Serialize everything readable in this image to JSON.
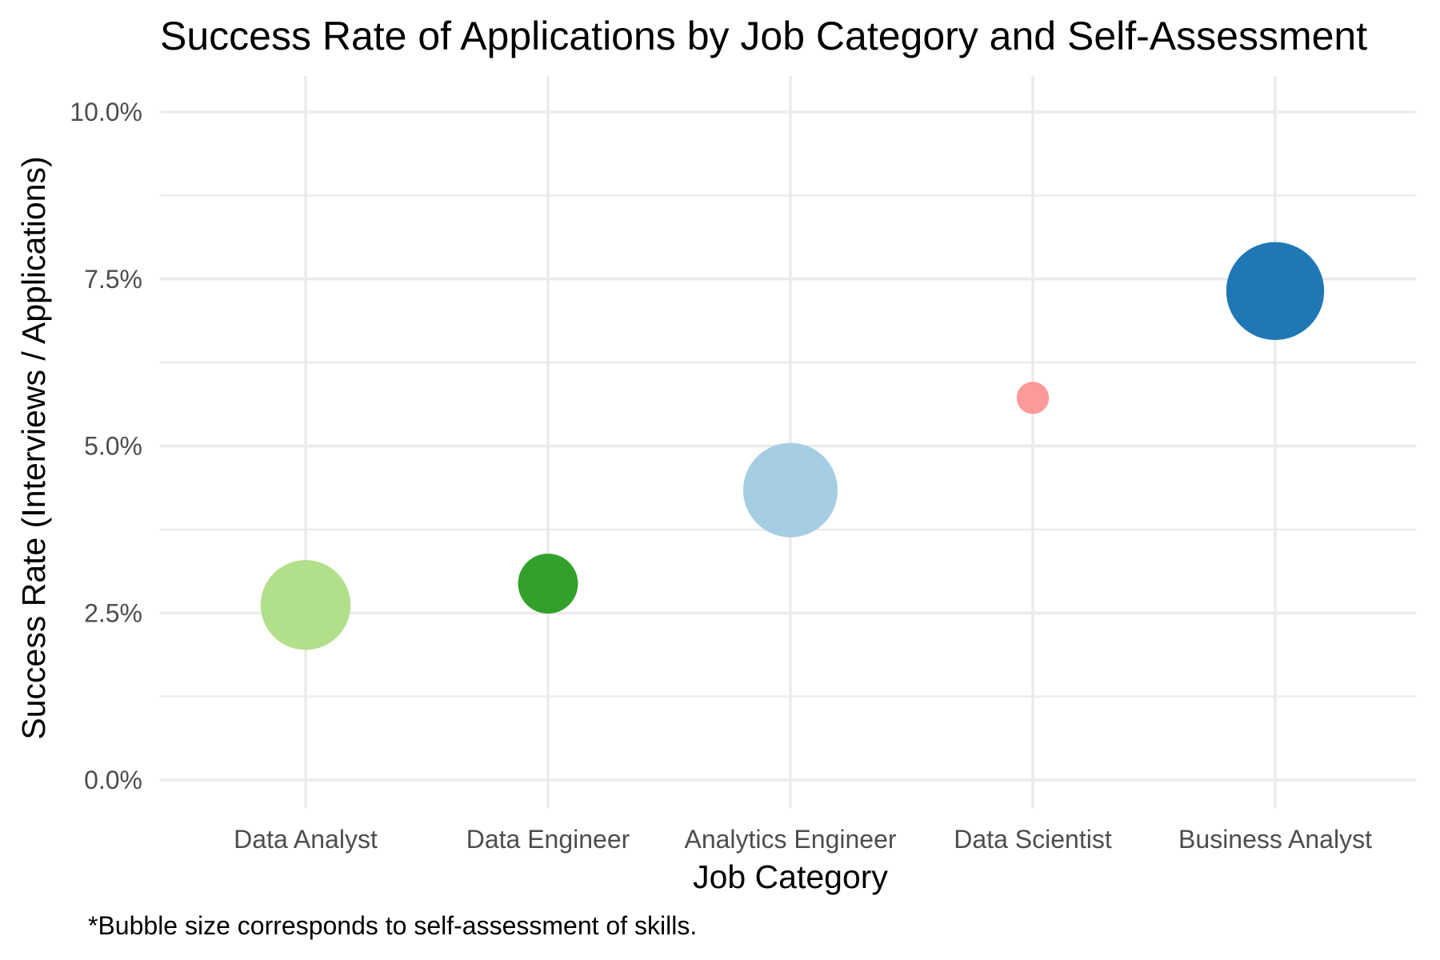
{
  "chart_data": {
    "type": "scatter",
    "title": "Success Rate of Applications by Job Category and Self-Assessment",
    "xlabel": "Job Category",
    "ylabel": "Success Rate (Interviews / Applications)",
    "caption": "*Bubble size corresponds to self-assessment of skills.",
    "ylim": [
      0,
      0.1
    ],
    "y_ticks": [
      0,
      0.025,
      0.05,
      0.075,
      0.1
    ],
    "y_tick_labels": [
      "0.0%",
      "2.5%",
      "5.0%",
      "7.5%",
      "10.0%"
    ],
    "y_minor_ticks": [
      0.0125,
      0.0375,
      0.0625,
      0.0875
    ],
    "grid": true,
    "legend": "none",
    "categories": [
      "Data Analyst",
      "Data Engineer",
      "Analytics Engineer",
      "Data Scientist",
      "Business Analyst"
    ],
    "points": [
      {
        "category": "Data Analyst",
        "value": 0.0262,
        "size": 0.78,
        "color": "#b2df8a"
      },
      {
        "category": "Data Engineer",
        "value": 0.0294,
        "size": 0.52,
        "color": "#33a02c"
      },
      {
        "category": "Analytics Engineer",
        "value": 0.0434,
        "size": 0.82,
        "color": "#a6cee3"
      },
      {
        "category": "Data Scientist",
        "value": 0.0572,
        "size": 0.28,
        "color": "#fb9a99"
      },
      {
        "category": "Business Analyst",
        "value": 0.0732,
        "size": 0.85,
        "color": "#1f78b4"
      }
    ]
  }
}
